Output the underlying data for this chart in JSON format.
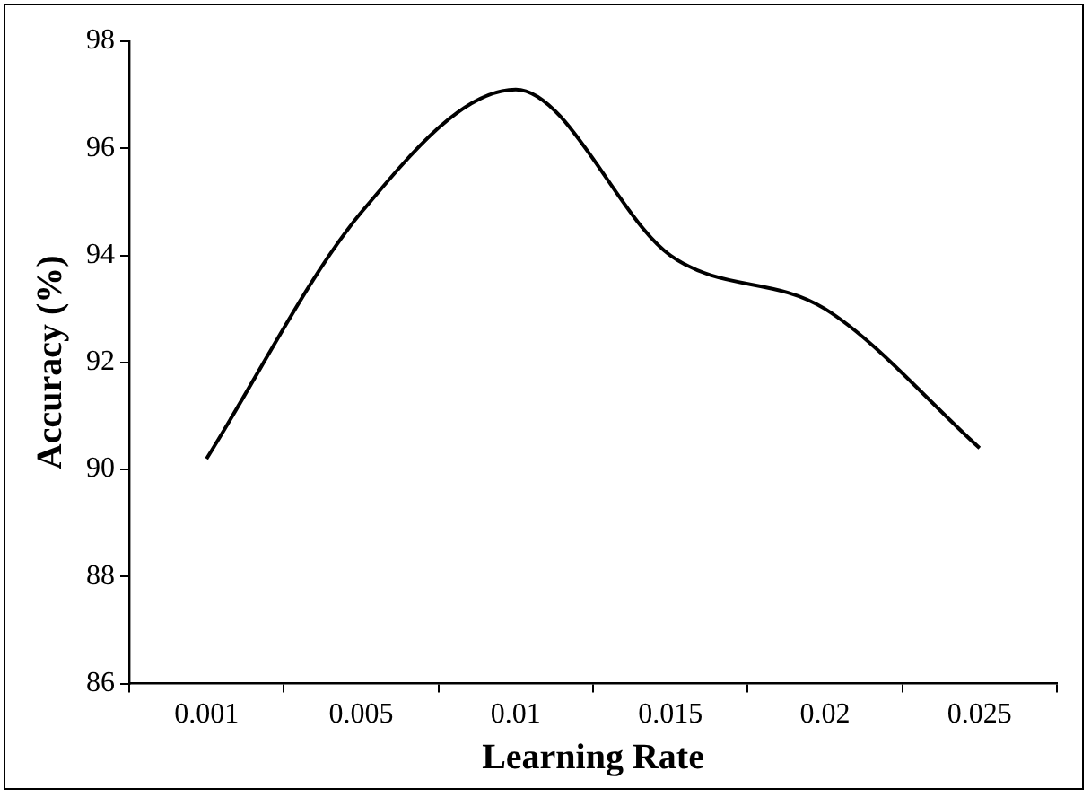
{
  "chart_data": {
    "type": "line",
    "xlabel": "Learning Rate",
    "ylabel": "Accuracy (%)",
    "categories": [
      "0.001",
      "0.005",
      "0.01",
      "0.015",
      "0.02",
      "0.025"
    ],
    "series": [
      {
        "color": "#000000",
        "values": [
          90.2,
          94.8,
          97.1,
          94.0,
          93.0,
          90.4
        ]
      }
    ],
    "ylim": [
      86,
      98
    ],
    "yticks": [
      86,
      88,
      90,
      92,
      94,
      96,
      98
    ],
    "grid": false,
    "legend": false,
    "marker": "none",
    "line_style": "solid"
  }
}
